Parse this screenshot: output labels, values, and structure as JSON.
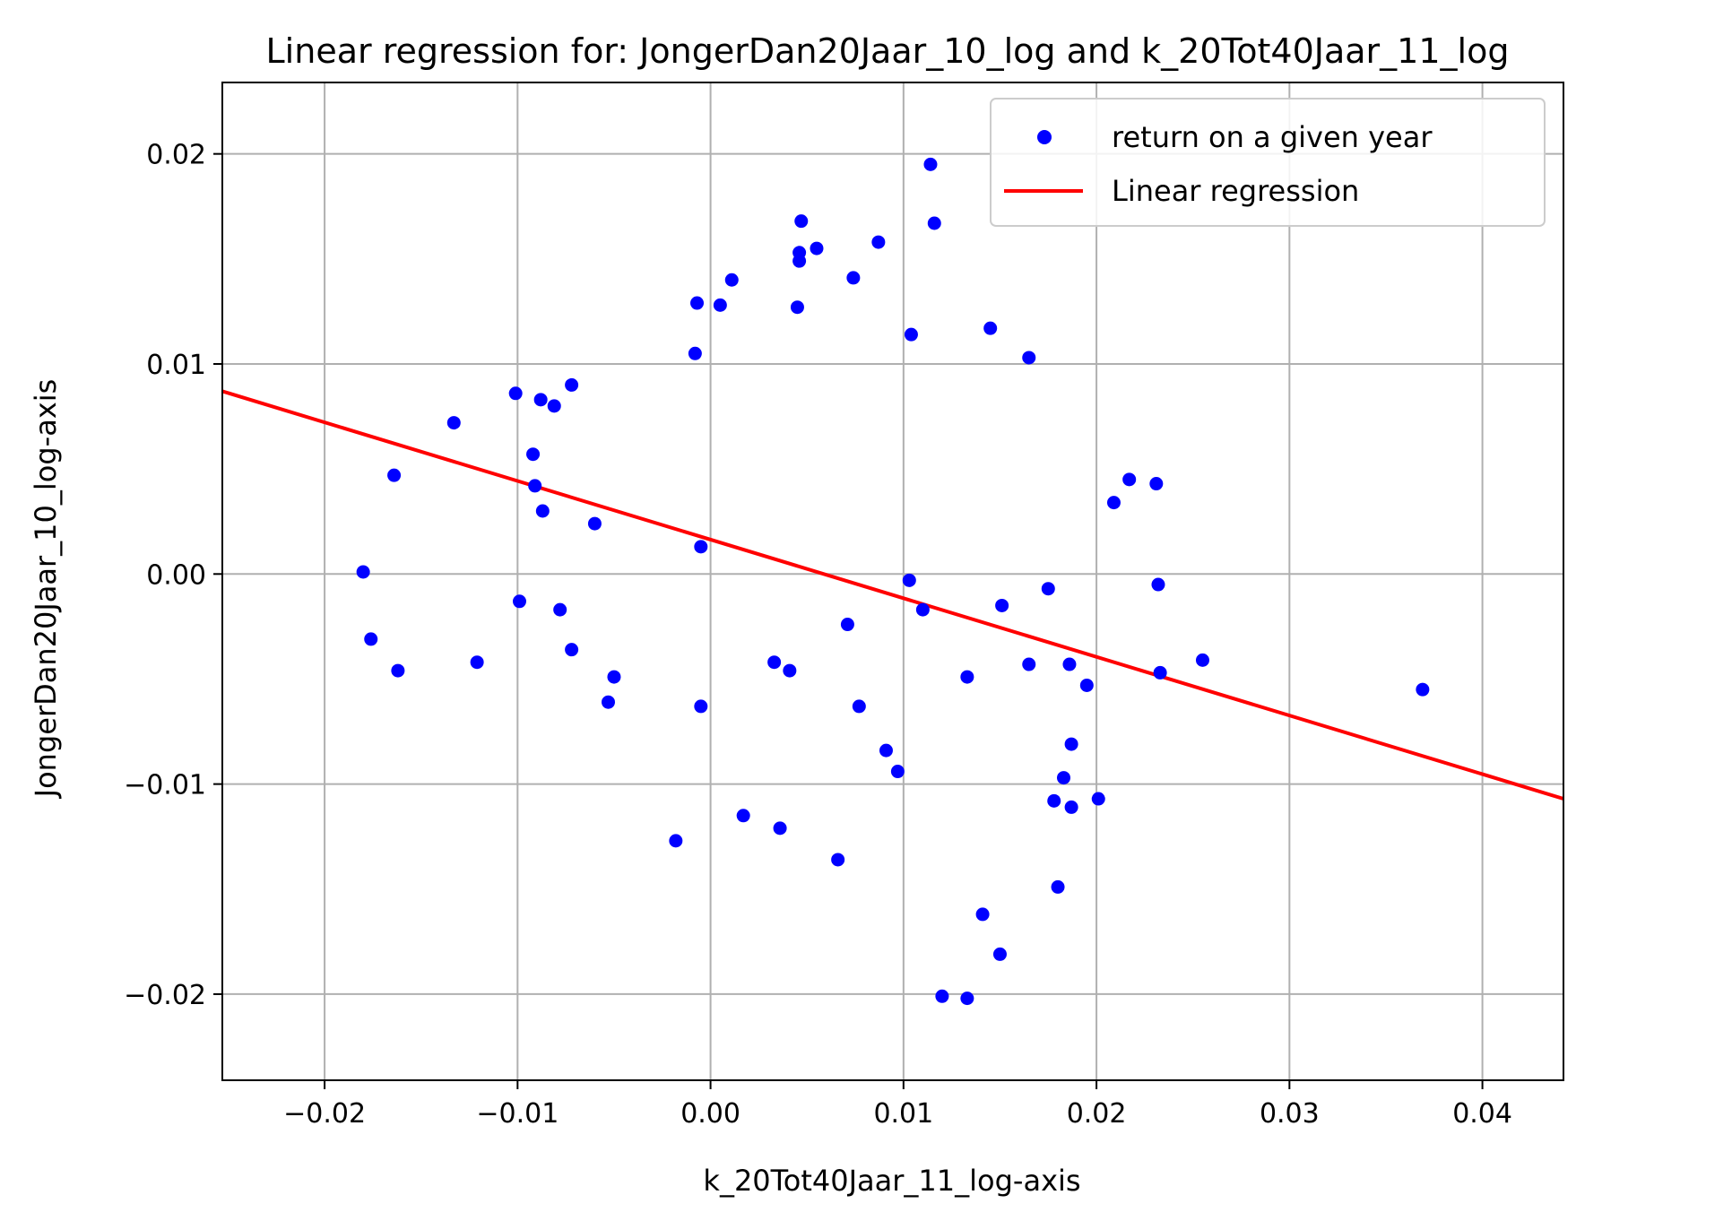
{
  "chart_data": {
    "type": "scatter",
    "title": "Linear regression for: JongerDan20Jaar_10_log and k_20Tot40Jaar_11_log",
    "xlabel": "k_20Tot40Jaar_11_log-axis",
    "ylabel": "JongerDan20Jaar_10_log-axis",
    "xlim": [
      -0.0253,
      0.0442
    ],
    "ylim": [
      -0.0241,
      0.0234
    ],
    "grid": true,
    "x_ticks": [
      -0.02,
      -0.01,
      0.0,
      0.01,
      0.02,
      0.03,
      0.04
    ],
    "x_tick_labels": [
      "−0.02",
      "−0.01",
      "0.00",
      "0.01",
      "0.02",
      "0.03",
      "0.04"
    ],
    "y_ticks": [
      0.02,
      0.01,
      0.0,
      -0.01,
      -0.02
    ],
    "y_tick_labels": [
      "0.02",
      "0.01",
      "0.00",
      "−0.01",
      "−0.02"
    ],
    "legend": {
      "placement": "top-right",
      "entries": [
        "return on a given year",
        "Linear regression"
      ]
    },
    "colors": {
      "points": "#0000ff",
      "line": "#ff0000"
    },
    "series": [
      {
        "name": "return on a given year",
        "kind": "scatter",
        "points": [
          [
            -0.018,
            0.0001
          ],
          [
            -0.0176,
            -0.0031
          ],
          [
            -0.0164,
            0.0047
          ],
          [
            -0.0162,
            -0.0046
          ],
          [
            -0.0133,
            0.0072
          ],
          [
            -0.0121,
            -0.0042
          ],
          [
            -0.0101,
            0.0086
          ],
          [
            -0.0099,
            -0.0013
          ],
          [
            -0.0092,
            0.0057
          ],
          [
            -0.0091,
            0.0042
          ],
          [
            -0.0088,
            0.0083
          ],
          [
            -0.0087,
            0.003
          ],
          [
            -0.0081,
            0.008
          ],
          [
            -0.0078,
            -0.0017
          ],
          [
            -0.0072,
            0.009
          ],
          [
            -0.0072,
            -0.0036
          ],
          [
            -0.006,
            0.0024
          ],
          [
            -0.0053,
            -0.0061
          ],
          [
            -0.005,
            -0.0049
          ],
          [
            -0.0018,
            -0.0127
          ],
          [
            -0.0008,
            0.0105
          ],
          [
            -0.0007,
            0.0129
          ],
          [
            -0.0005,
            0.0013
          ],
          [
            -0.0005,
            -0.0063
          ],
          [
            0.0005,
            0.0128
          ],
          [
            0.0011,
            0.014
          ],
          [
            0.0017,
            -0.0115
          ],
          [
            0.0033,
            -0.0042
          ],
          [
            0.0036,
            -0.0121
          ],
          [
            0.0041,
            -0.0046
          ],
          [
            0.0045,
            0.0127
          ],
          [
            0.0046,
            0.0149
          ],
          [
            0.0046,
            0.0153
          ],
          [
            0.0047,
            0.0168
          ],
          [
            0.0055,
            0.0155
          ],
          [
            0.0066,
            -0.0136
          ],
          [
            0.0071,
            -0.0024
          ],
          [
            0.0074,
            0.0141
          ],
          [
            0.0077,
            -0.0063
          ],
          [
            0.0087,
            0.0158
          ],
          [
            0.0091,
            -0.0084
          ],
          [
            0.0097,
            -0.0094
          ],
          [
            0.0103,
            -0.0003
          ],
          [
            0.0104,
            0.0114
          ],
          [
            0.011,
            -0.0017
          ],
          [
            0.0114,
            0.0195
          ],
          [
            0.0116,
            0.0167
          ],
          [
            0.012,
            -0.0201
          ],
          [
            0.0133,
            -0.0202
          ],
          [
            0.0133,
            -0.0049
          ],
          [
            0.0141,
            -0.0162
          ],
          [
            0.0145,
            0.0117
          ],
          [
            0.015,
            -0.0181
          ],
          [
            0.0151,
            -0.0015
          ],
          [
            0.0165,
            0.0103
          ],
          [
            0.0165,
            -0.0043
          ],
          [
            0.0175,
            -0.0007
          ],
          [
            0.0178,
            -0.0108
          ],
          [
            0.018,
            -0.0149
          ],
          [
            0.0183,
            -0.0097
          ],
          [
            0.0186,
            -0.0043
          ],
          [
            0.0187,
            -0.0081
          ],
          [
            0.0187,
            -0.0111
          ],
          [
            0.0195,
            -0.0053
          ],
          [
            0.0201,
            -0.0107
          ],
          [
            0.0209,
            0.0034
          ],
          [
            0.0217,
            0.0045
          ],
          [
            0.0231,
            0.0043
          ],
          [
            0.0232,
            -0.0005
          ],
          [
            0.0233,
            -0.0047
          ],
          [
            0.0255,
            -0.0041
          ],
          [
            0.0369,
            -0.0055
          ]
        ]
      },
      {
        "name": "Linear regression",
        "kind": "line",
        "points": [
          [
            -0.0253,
            0.0087
          ],
          [
            0.0442,
            -0.0107
          ]
        ]
      }
    ]
  }
}
